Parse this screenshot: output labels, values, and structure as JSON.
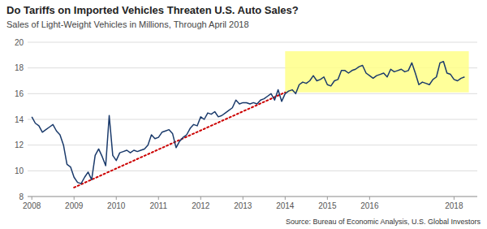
{
  "chart_data": {
    "type": "line",
    "title": "Do Tariffs on Imported Vehicles Threaten U.S. Auto Sales?",
    "subtitle": "Sales of Light-Weight Vehicles in Millions, Through April 2018",
    "annotations": [
      "Source: Bureau of Economic Analysis, U.S. Global Investors"
    ],
    "xlim": [
      2007.9,
      2018.55
    ],
    "xticks": [
      2008,
      2009,
      2010,
      2011,
      2012,
      2013,
      2014,
      2015,
      2016,
      2018
    ],
    "ylim": [
      8,
      20
    ],
    "yticks": [
      8,
      10,
      12,
      14,
      16,
      18,
      20
    ],
    "grid": true,
    "highlight": {
      "x": [
        2014.0,
        2018.35
      ],
      "y": [
        16.1,
        19.3
      ],
      "color": "#ffff88"
    },
    "series": [
      {
        "color": "#1a3a6b",
        "line_style": "solid",
        "x": [
          2008.0,
          2008.083,
          2008.167,
          2008.25,
          2008.333,
          2008.417,
          2008.5,
          2008.583,
          2008.667,
          2008.75,
          2008.833,
          2008.917,
          2009.0,
          2009.083,
          2009.167,
          2009.25,
          2009.333,
          2009.417,
          2009.5,
          2009.583,
          2009.667,
          2009.75,
          2009.833,
          2009.917,
          2010.0,
          2010.083,
          2010.167,
          2010.25,
          2010.333,
          2010.417,
          2010.5,
          2010.583,
          2010.667,
          2010.75,
          2010.833,
          2010.917,
          2011.0,
          2011.083,
          2011.167,
          2011.25,
          2011.333,
          2011.417,
          2011.5,
          2011.583,
          2011.667,
          2011.75,
          2011.833,
          2011.917,
          2012.0,
          2012.083,
          2012.167,
          2012.25,
          2012.333,
          2012.417,
          2012.5,
          2012.583,
          2012.667,
          2012.75,
          2012.833,
          2012.917,
          2013.0,
          2013.083,
          2013.167,
          2013.25,
          2013.333,
          2013.417,
          2013.5,
          2013.583,
          2013.667,
          2013.75,
          2013.833,
          2013.917,
          2014.0,
          2014.083,
          2014.167,
          2014.25,
          2014.333,
          2014.417,
          2014.5,
          2014.583,
          2014.667,
          2014.75,
          2014.833,
          2014.917,
          2015.0,
          2015.083,
          2015.167,
          2015.25,
          2015.333,
          2015.417,
          2015.5,
          2015.583,
          2015.667,
          2015.75,
          2015.833,
          2015.917,
          2016.0,
          2016.083,
          2016.167,
          2016.25,
          2016.333,
          2016.417,
          2016.5,
          2016.583,
          2016.667,
          2016.75,
          2016.833,
          2016.917,
          2017.0,
          2017.083,
          2017.167,
          2017.25,
          2017.333,
          2017.417,
          2017.5,
          2017.583,
          2017.667,
          2017.75,
          2017.833,
          2017.917,
          2018.0,
          2018.083,
          2018.167,
          2018.25
        ],
        "values": [
          14.2,
          13.7,
          13.5,
          13.0,
          13.2,
          13.4,
          13.6,
          13.1,
          12.8,
          12.0,
          10.5,
          10.3,
          9.5,
          9.1,
          9.0,
          9.5,
          9.9,
          9.3,
          11.2,
          11.7,
          11.1,
          10.4,
          14.3,
          11.2,
          10.8,
          11.4,
          11.5,
          11.6,
          11.4,
          11.6,
          11.5,
          11.6,
          11.7,
          12.0,
          12.8,
          12.5,
          12.6,
          13.0,
          13.1,
          13.2,
          12.9,
          11.8,
          12.3,
          12.6,
          12.8,
          13.3,
          13.6,
          13.5,
          14.2,
          14.0,
          14.5,
          14.4,
          14.6,
          14.2,
          14.3,
          14.5,
          14.7,
          14.9,
          15.5,
          15.2,
          15.3,
          15.3,
          15.2,
          15.3,
          15.2,
          15.5,
          15.6,
          15.8,
          16.0,
          15.5,
          16.3,
          15.4,
          16.0,
          16.2,
          16.3,
          16.0,
          16.7,
          16.9,
          16.8,
          17.0,
          17.4,
          17.0,
          17.1,
          17.3,
          16.7,
          16.6,
          17.0,
          17.1,
          17.8,
          17.8,
          17.6,
          17.8,
          17.9,
          18.1,
          18.2,
          17.6,
          17.4,
          17.2,
          17.4,
          17.5,
          17.6,
          17.3,
          17.9,
          17.7,
          17.8,
          17.9,
          17.7,
          17.8,
          18.4,
          17.6,
          16.7,
          16.9,
          16.8,
          16.7,
          17.1,
          17.3,
          18.4,
          18.5,
          17.6,
          17.5,
          17.1,
          17.0,
          17.2,
          17.3
        ]
      },
      {
        "color": "#cc0000",
        "line_style": "dotted",
        "x": [
          2009.0,
          2014.0
        ],
        "values": [
          8.7,
          16.1
        ]
      }
    ]
  }
}
